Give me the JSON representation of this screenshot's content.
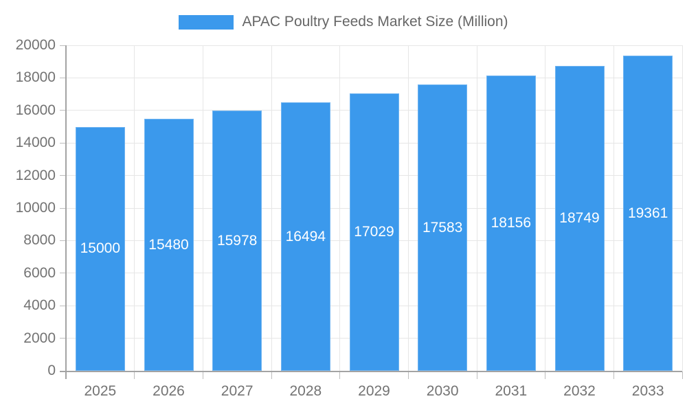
{
  "legend": {
    "label": "APAC Poultry Feeds Market Size (Million)"
  },
  "chart_data": {
    "type": "bar",
    "title": "APAC Poultry Feeds Market Size (Million)",
    "categories": [
      "2025",
      "2026",
      "2027",
      "2028",
      "2029",
      "2030",
      "2031",
      "2032",
      "2033"
    ],
    "values": [
      15000,
      15480,
      15978,
      16494,
      17029,
      17583,
      18156,
      18749,
      19361
    ],
    "xlabel": "",
    "ylabel": "",
    "ylim": [
      0,
      20000
    ],
    "ytick_step": 2000,
    "yticks": [
      0,
      2000,
      4000,
      6000,
      8000,
      10000,
      12000,
      14000,
      16000,
      18000,
      20000
    ],
    "grid": true,
    "legend_position": "top-center",
    "value_labels": "inside-center"
  },
  "colors": {
    "bar": "#3b99ec",
    "bar_edge": "rgba(255,255,255,0.28)",
    "grid": "#e6e6e6",
    "axis": "#a3a3a3",
    "axis_tick": "#bdbdbd",
    "tick_text": "#737373",
    "legend_text": "#666666",
    "value_label": "#ffffff",
    "background": "#ffffff"
  }
}
